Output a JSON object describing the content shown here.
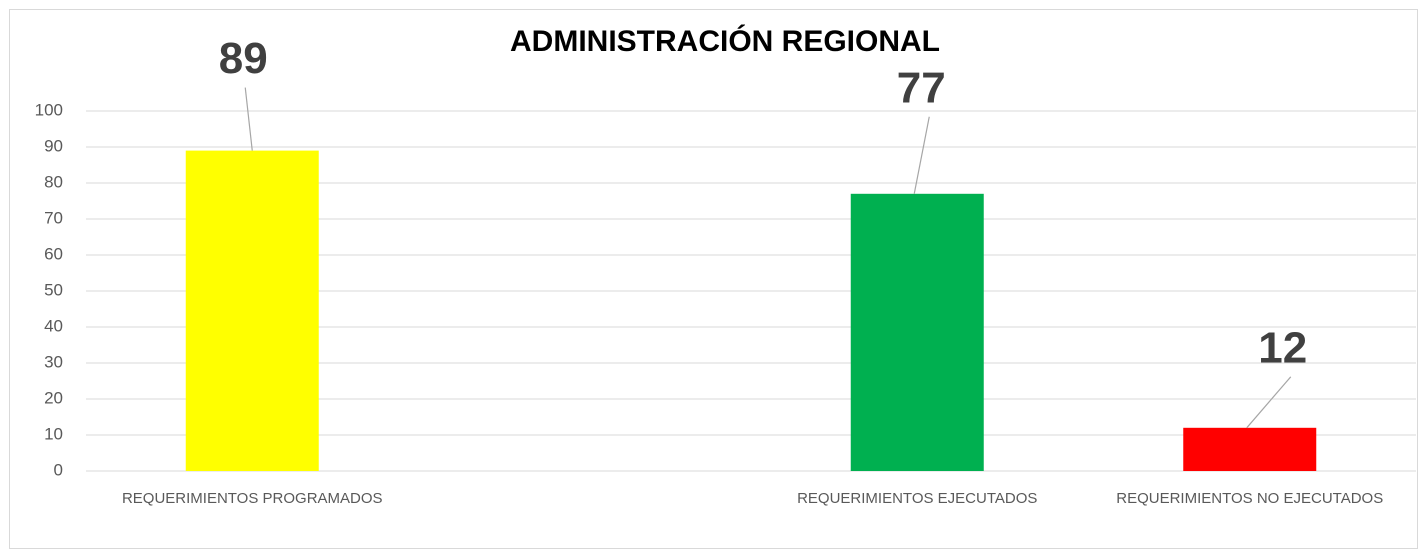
{
  "chart_data": {
    "type": "bar",
    "title": "ADMINISTRACIÓN REGIONAL",
    "categories": [
      "REQUERIMIENTOS PROGRAMADOS",
      null,
      "REQUERIMIENTOS EJECUTADOS",
      "REQUERIMIENTOS NO EJECUTADOS"
    ],
    "values": [
      89,
      null,
      77,
      12
    ],
    "colors": [
      "#ffff00",
      null,
      "#00b050",
      "#ff0000"
    ],
    "ylim": [
      0,
      100
    ],
    "yticks": [
      0,
      10,
      20,
      30,
      40,
      50,
      60,
      70,
      80,
      90,
      100
    ],
    "grid": true
  }
}
